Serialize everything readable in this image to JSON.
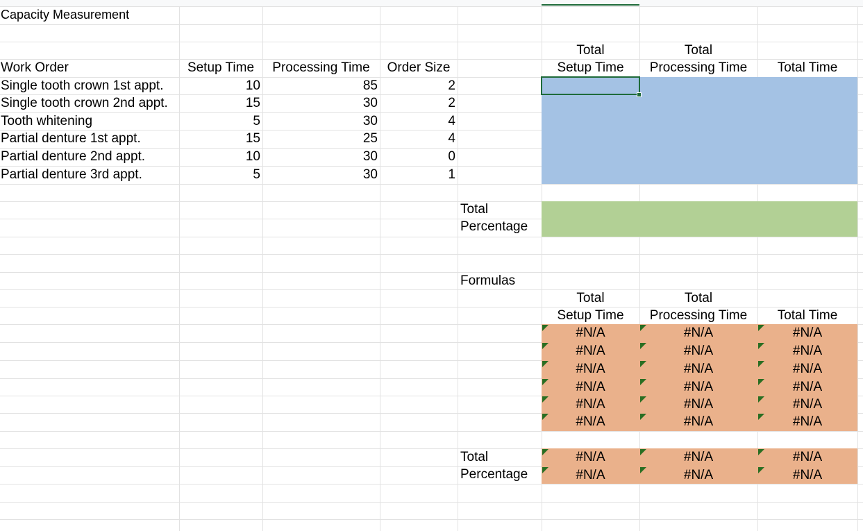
{
  "sheet": {
    "title": "Capacity Measurement",
    "headers": {
      "work_order": "Work Order",
      "setup_time": "Setup Time",
      "processing_time": "Processing Time",
      "order_size": "Order Size"
    },
    "rows": [
      {
        "work_order": "Single tooth crown 1st appt.",
        "setup_time": "10",
        "processing_time": "85",
        "order_size": "2"
      },
      {
        "work_order": "Single tooth crown 2nd appt.",
        "setup_time": "15",
        "processing_time": "30",
        "order_size": "2"
      },
      {
        "work_order": "Tooth whitening",
        "setup_time": "5",
        "processing_time": "30",
        "order_size": "4"
      },
      {
        "work_order": "Partial denture 1st appt.",
        "setup_time": "15",
        "processing_time": "25",
        "order_size": "4"
      },
      {
        "work_order": "Partial denture 2nd appt.",
        "setup_time": "10",
        "processing_time": "30",
        "order_size": "0"
      },
      {
        "work_order": "Partial denture 3rd appt.",
        "setup_time": "5",
        "processing_time": "30",
        "order_size": "1"
      }
    ],
    "totals_header": {
      "line1_setup": "Total",
      "line2_setup": "Setup Time",
      "line1_processing": "Total",
      "line2_processing": "Processing Time",
      "total_time": "Total Time"
    },
    "total_label": "Total",
    "percentage_label": "Percentage",
    "formulas_label": "Formulas",
    "formula_rows": [
      [
        "#N/A",
        "#N/A",
        "#N/A"
      ],
      [
        "#N/A",
        "#N/A",
        "#N/A"
      ],
      [
        "#N/A",
        "#N/A",
        "#N/A"
      ],
      [
        "#N/A",
        "#N/A",
        "#N/A"
      ],
      [
        "#N/A",
        "#N/A",
        "#N/A"
      ],
      [
        "#N/A",
        "#N/A",
        "#N/A"
      ]
    ],
    "formula_totals": [
      [
        "#N/A",
        "#N/A",
        "#N/A"
      ],
      [
        "#N/A",
        "#N/A",
        "#N/A"
      ]
    ]
  },
  "colors": {
    "input_fill": "#a4c2e4",
    "total_fill": "#b2d095",
    "formula_fill": "#eab18b",
    "error_marker": "#2a6e22",
    "selection": "#1f6b3a"
  }
}
